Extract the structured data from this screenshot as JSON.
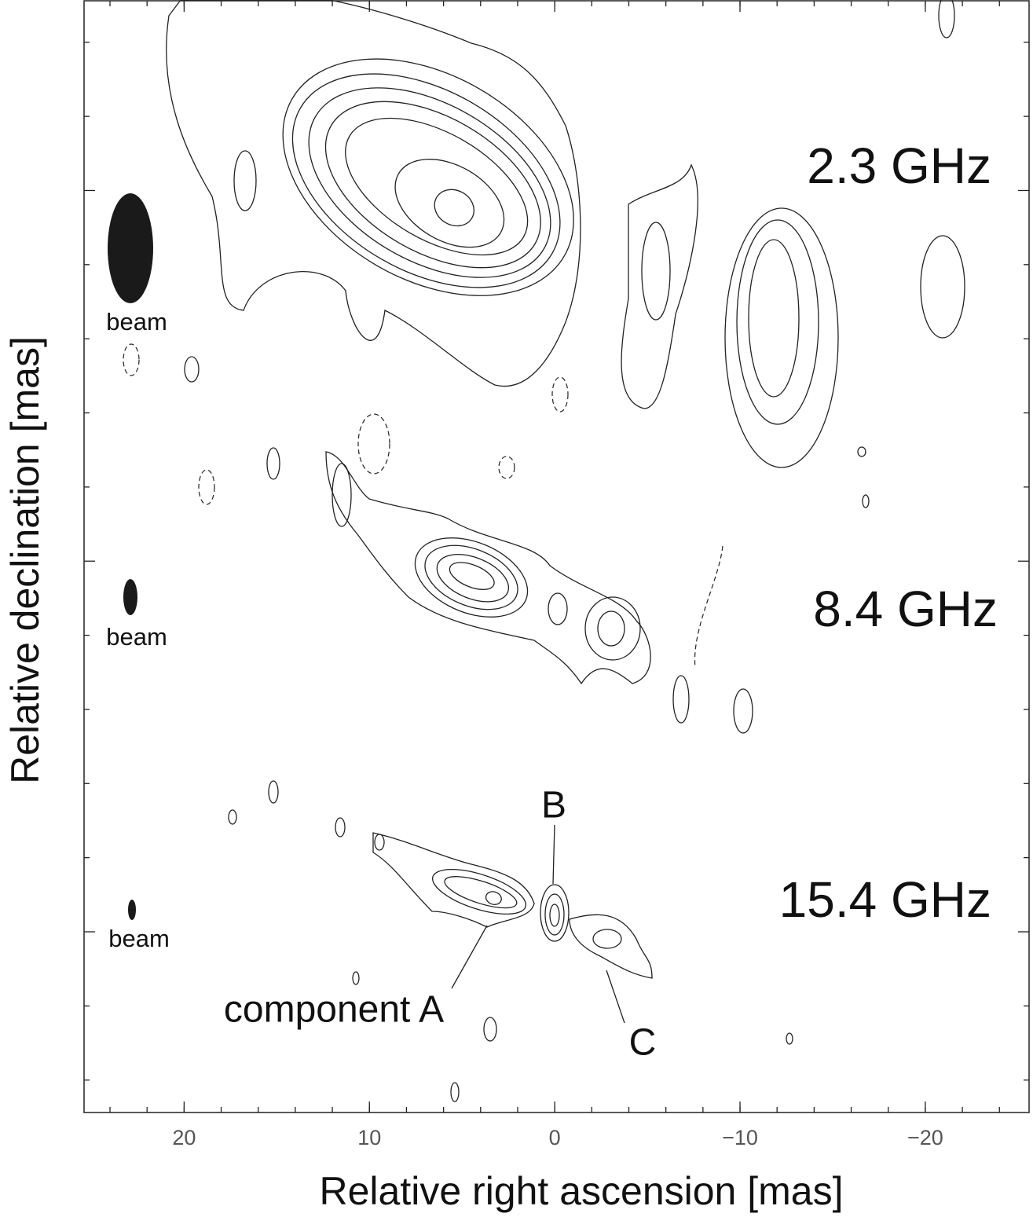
{
  "chart_data": {
    "type": "contour",
    "x_label": "Relative right ascension [mas]",
    "y_label": "Relative declination [mas]",
    "xlim": [
      25.4,
      -25.6
    ],
    "xticks": [
      20,
      10,
      0,
      {
        "value": -10,
        "label": "−10"
      },
      {
        "value": -20,
        "label": "−20"
      }
    ],
    "annotations": [
      "2.3 GHz",
      "8.4 GHz",
      "15.4 GHz",
      "beam",
      "beam",
      "beam",
      "B",
      "component A",
      "C"
    ]
  }
}
